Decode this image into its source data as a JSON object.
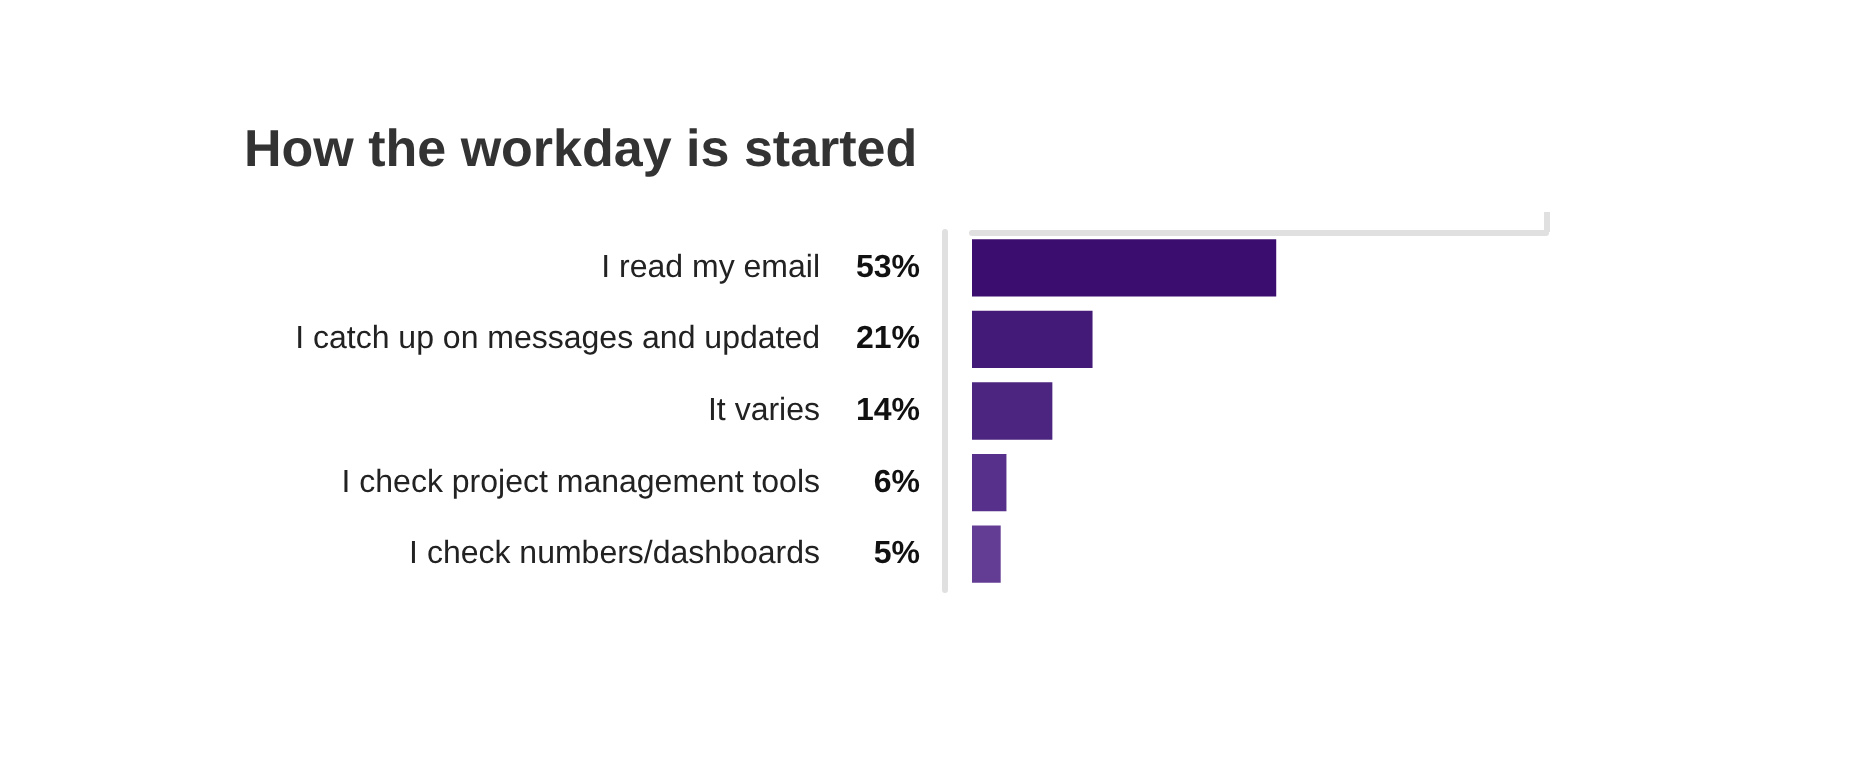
{
  "chart_data": {
    "type": "bar",
    "orientation": "horizontal",
    "title": "How the workday is started",
    "categories": [
      "I read my email",
      "I catch up on messages and updated",
      "It varies",
      "I check project management tools",
      "I check numbers/dashboards"
    ],
    "values": [
      53,
      21,
      14,
      6,
      5
    ],
    "colors": [
      "#3b0d6e",
      "#441a78",
      "#4c2580",
      "#56308a",
      "#633d94"
    ],
    "value_labels": [
      "53%",
      "21%",
      "14%",
      "6%",
      "5%"
    ],
    "xlim": [
      0,
      100
    ],
    "tick_labels": "y"
  }
}
